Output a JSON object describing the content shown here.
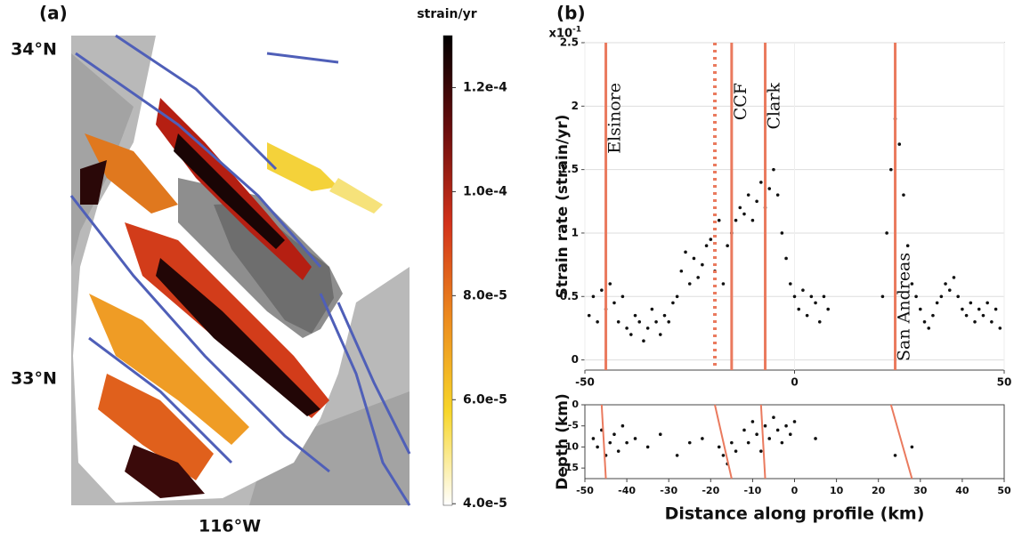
{
  "chart_data": [
    {
      "type": "map",
      "panel_label": "(a)",
      "lat_labels": [
        "34°N",
        "33°N"
      ],
      "lon_label": "116°W",
      "colorbar": {
        "label": "strain/yr",
        "lim": [
          3.97e-05,
          0.00013
        ],
        "ticks": [
          {
            "value": 0.00012,
            "label": "1.2e-4"
          },
          {
            "value": 0.0001,
            "label": "1.0e-4"
          },
          {
            "value": 8e-05,
            "label": "8.0e-5"
          },
          {
            "value": 6e-05,
            "label": "6.0e-5"
          },
          {
            "value": 4e-05,
            "label": "4.0e-5"
          }
        ],
        "colors": [
          "#ffffff",
          "#f7d62a",
          "#ec8a1e",
          "#d2321b",
          "#6a0d0d",
          "#000000"
        ]
      }
    },
    {
      "type": "scatter",
      "panel_label": "(b)",
      "ylabel": "Strain rate (strain/yr)",
      "y_multiplier": {
        "base": "x10",
        "exponent": "-1"
      },
      "xlim": [
        -50,
        50
      ],
      "xticks": [
        -50,
        0,
        50
      ],
      "ylim": [
        -0.08,
        2.5
      ],
      "yticks": [
        0,
        0.5,
        1,
        1.5,
        2,
        2.5
      ],
      "grid": true,
      "fault_color": "#ea7a5e",
      "faults": [
        {
          "x": -45,
          "label": "Elsinore"
        },
        {
          "x": -19,
          "dashed": true
        },
        {
          "x": -15,
          "label": "CCF"
        },
        {
          "x": -7,
          "label": "Clark"
        },
        {
          "x": 24,
          "label": "San Andreas"
        }
      ],
      "series": [
        {
          "color": "#111111",
          "x": [
            -49,
            -48,
            -47,
            -46,
            -45,
            -44,
            -43,
            -42,
            -41,
            -40,
            -39,
            -38,
            -37,
            -36,
            -35,
            -34,
            -33,
            -32,
            -31,
            -30,
            -29,
            -28,
            -27,
            -26,
            -25,
            -24,
            -23,
            -22,
            -21,
            -20,
            -19,
            -18,
            -17,
            -16,
            -15,
            -14,
            -13,
            -12,
            -11,
            -10,
            -9,
            -8,
            -7,
            -6,
            -5,
            -4,
            -3,
            -2,
            -1,
            0,
            1,
            2,
            3,
            4,
            5,
            6,
            7,
            8,
            21,
            22,
            23,
            24,
            25,
            26,
            27,
            28,
            29,
            30,
            31,
            32,
            33,
            34,
            35,
            36,
            37,
            38,
            39,
            40,
            41,
            42,
            43,
            44,
            45,
            46,
            47,
            48,
            49
          ],
          "values": [
            0.35,
            0.5,
            0.3,
            0.55,
            0.4,
            0.6,
            0.45,
            0.3,
            0.5,
            0.25,
            0.2,
            0.35,
            0.3,
            0.15,
            0.25,
            0.4,
            0.3,
            0.2,
            0.35,
            0.3,
            0.45,
            0.5,
            0.7,
            0.85,
            0.6,
            0.8,
            0.65,
            0.75,
            0.9,
            0.95,
            0.7,
            1.1,
            0.6,
            0.9,
            1.0,
            1.1,
            1.2,
            1.15,
            1.3,
            1.1,
            1.25,
            1.4,
            1.2,
            1.35,
            1.5,
            1.3,
            1.0,
            0.8,
            0.6,
            0.5,
            0.4,
            0.55,
            0.35,
            0.5,
            0.45,
            0.3,
            0.5,
            0.4,
            0.5,
            1.0,
            1.5,
            1.9,
            1.7,
            1.3,
            0.9,
            0.6,
            0.5,
            0.4,
            0.3,
            0.25,
            0.35,
            0.45,
            0.5,
            0.6,
            0.55,
            0.65,
            0.5,
            0.4,
            0.35,
            0.45,
            0.3,
            0.4,
            0.35,
            0.45,
            0.3,
            0.4,
            0.25
          ]
        }
      ]
    },
    {
      "type": "scatter",
      "ylabel": "Depth (km)",
      "xlabel": "Distance along profile (km)",
      "xlim": [
        -50,
        50
      ],
      "xticks": [
        -50,
        -40,
        -30,
        -20,
        -10,
        0,
        10,
        20,
        30,
        40,
        50
      ],
      "ylim": [
        -17.5,
        0
      ],
      "yticks": [
        0,
        -5,
        -10,
        -15
      ],
      "fault_color": "#ea7a5e",
      "fault_segments": [
        {
          "x": [
            -46,
            -45
          ],
          "y": [
            0,
            -17.5
          ]
        },
        {
          "x": [
            -19,
            -15
          ],
          "y": [
            0,
            -17.5
          ]
        },
        {
          "x": [
            -8,
            -7
          ],
          "y": [
            0,
            -17.5
          ]
        },
        {
          "x": [
            23,
            28
          ],
          "y": [
            0,
            -17.5
          ]
        }
      ],
      "series": [
        {
          "color": "#111111",
          "x": [
            -48,
            -47,
            -46,
            -45,
            -44,
            -43,
            -42,
            -41,
            -40,
            -38,
            -35,
            -32,
            -28,
            -25,
            -22,
            -18,
            -17,
            -16,
            -15,
            -14,
            -12,
            -11,
            -10,
            -9,
            -8,
            -7,
            -6,
            -5,
            -4,
            -3,
            -2,
            -1,
            0,
            5,
            24,
            28
          ],
          "values": [
            -8,
            -10,
            -6,
            -12,
            -9,
            -7,
            -11,
            -5,
            -9,
            -8,
            -10,
            -7,
            -12,
            -9,
            -8,
            -10,
            -12,
            -14,
            -9,
            -11,
            -6,
            -9,
            -4,
            -7,
            -11,
            -5,
            -8,
            -3,
            -6,
            -9,
            -5,
            -7,
            -4,
            -8,
            -12,
            -10
          ]
        }
      ]
    }
  ]
}
